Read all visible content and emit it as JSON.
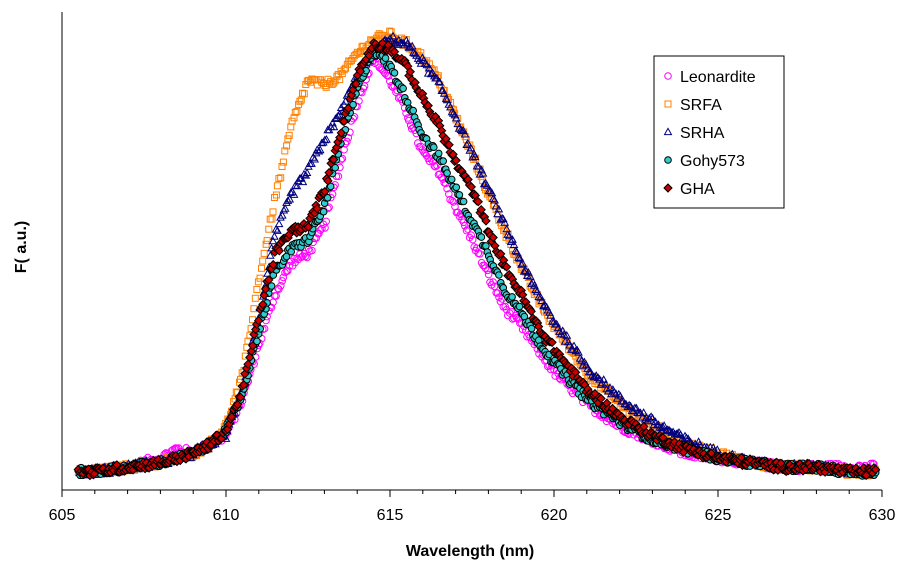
{
  "chart_data": {
    "type": "scatter",
    "title": "",
    "xlabel": "Wavelength (nm)",
    "ylabel": "F( a.u.)",
    "xlim": [
      605,
      630
    ],
    "ylim": [
      0,
      1.05
    ],
    "x_ticks": [
      "605",
      "610",
      "615",
      "620",
      "625",
      "630"
    ],
    "grid": false,
    "legend_position": "top-right",
    "x_range": [
      605.5,
      629.8
    ],
    "series": [
      {
        "name": "Leonardite",
        "marker": "circle-open",
        "color": "#ff00ff",
        "fill": "none",
        "points": [
          [
            605.5,
            0.04
          ],
          [
            606,
            0.04
          ],
          [
            607,
            0.05
          ],
          [
            608,
            0.07
          ],
          [
            608.5,
            0.09
          ],
          [
            609,
            0.08
          ],
          [
            609.5,
            0.1
          ],
          [
            610,
            0.12
          ],
          [
            610.5,
            0.2
          ],
          [
            611,
            0.32
          ],
          [
            611.5,
            0.43
          ],
          [
            612,
            0.5
          ],
          [
            612.5,
            0.52
          ],
          [
            613,
            0.58
          ],
          [
            613.5,
            0.72
          ],
          [
            614,
            0.85
          ],
          [
            614.5,
            0.95
          ],
          [
            615,
            0.9
          ],
          [
            615.5,
            0.83
          ],
          [
            616,
            0.74
          ],
          [
            616.5,
            0.7
          ],
          [
            617,
            0.62
          ],
          [
            617.5,
            0.55
          ],
          [
            618,
            0.47
          ],
          [
            618.5,
            0.4
          ],
          [
            619,
            0.36
          ],
          [
            619.5,
            0.31
          ],
          [
            620,
            0.26
          ],
          [
            621,
            0.19
          ],
          [
            622,
            0.14
          ],
          [
            623,
            0.11
          ],
          [
            624,
            0.08
          ],
          [
            625,
            0.07
          ],
          [
            626,
            0.06
          ],
          [
            627,
            0.05
          ],
          [
            628,
            0.05
          ],
          [
            629,
            0.05
          ],
          [
            629.8,
            0.05
          ]
        ]
      },
      {
        "name": "SRFA",
        "marker": "square-open",
        "color": "#ff8000",
        "fill": "none",
        "points": [
          [
            605.5,
            0.04
          ],
          [
            606,
            0.04
          ],
          [
            607,
            0.05
          ],
          [
            608,
            0.06
          ],
          [
            609,
            0.08
          ],
          [
            609.5,
            0.1
          ],
          [
            610,
            0.14
          ],
          [
            610.5,
            0.25
          ],
          [
            611,
            0.46
          ],
          [
            611.5,
            0.64
          ],
          [
            612,
            0.8
          ],
          [
            612.5,
            0.9
          ],
          [
            613,
            0.89
          ],
          [
            613.5,
            0.91
          ],
          [
            614,
            0.96
          ],
          [
            614.5,
            0.99
          ],
          [
            615,
            1.0
          ],
          [
            615.5,
            0.98
          ],
          [
            616,
            0.95
          ],
          [
            616.5,
            0.9
          ],
          [
            617,
            0.82
          ],
          [
            617.5,
            0.74
          ],
          [
            618,
            0.65
          ],
          [
            618.5,
            0.57
          ],
          [
            619,
            0.49
          ],
          [
            619.5,
            0.42
          ],
          [
            620,
            0.36
          ],
          [
            621,
            0.26
          ],
          [
            622,
            0.19
          ],
          [
            623,
            0.14
          ],
          [
            624,
            0.1
          ],
          [
            625,
            0.08
          ],
          [
            626,
            0.06
          ],
          [
            627,
            0.05
          ],
          [
            628,
            0.05
          ],
          [
            629,
            0.04
          ],
          [
            629.8,
            0.04
          ]
        ]
      },
      {
        "name": "SRHA",
        "marker": "triangle-open",
        "color": "#000080",
        "fill": "none",
        "points": [
          [
            605.5,
            0.04
          ],
          [
            606,
            0.04
          ],
          [
            607,
            0.05
          ],
          [
            608,
            0.06
          ],
          [
            609,
            0.08
          ],
          [
            609.5,
            0.1
          ],
          [
            610,
            0.12
          ],
          [
            610.5,
            0.22
          ],
          [
            611,
            0.38
          ],
          [
            611.5,
            0.56
          ],
          [
            612,
            0.65
          ],
          [
            612.5,
            0.7
          ],
          [
            613,
            0.77
          ],
          [
            613.5,
            0.83
          ],
          [
            614,
            0.91
          ],
          [
            614.5,
            0.96
          ],
          [
            615,
            0.99
          ],
          [
            615.5,
            0.98
          ],
          [
            616,
            0.94
          ],
          [
            616.5,
            0.89
          ],
          [
            617,
            0.82
          ],
          [
            617.5,
            0.74
          ],
          [
            618,
            0.66
          ],
          [
            618.5,
            0.58
          ],
          [
            619,
            0.5
          ],
          [
            619.5,
            0.43
          ],
          [
            620,
            0.37
          ],
          [
            621,
            0.27
          ],
          [
            622,
            0.2
          ],
          [
            623,
            0.15
          ],
          [
            624,
            0.11
          ],
          [
            625,
            0.08
          ],
          [
            626,
            0.06
          ],
          [
            627,
            0.05
          ],
          [
            628,
            0.05
          ],
          [
            629,
            0.04
          ],
          [
            629.8,
            0.04
          ]
        ]
      },
      {
        "name": "Gohy573",
        "marker": "circle-filled",
        "color": "#000000",
        "fill": "#33cccc",
        "points": [
          [
            605.5,
            0.04
          ],
          [
            606,
            0.04
          ],
          [
            607,
            0.05
          ],
          [
            608,
            0.06
          ],
          [
            608.5,
            0.07
          ],
          [
            609,
            0.08
          ],
          [
            609.5,
            0.1
          ],
          [
            610,
            0.13
          ],
          [
            610.5,
            0.21
          ],
          [
            611,
            0.35
          ],
          [
            611.5,
            0.48
          ],
          [
            612,
            0.53
          ],
          [
            612.5,
            0.55
          ],
          [
            613,
            0.62
          ],
          [
            613.5,
            0.76
          ],
          [
            614,
            0.88
          ],
          [
            614.5,
            0.97
          ],
          [
            615,
            0.93
          ],
          [
            615.5,
            0.86
          ],
          [
            616,
            0.78
          ],
          [
            616.5,
            0.73
          ],
          [
            617,
            0.66
          ],
          [
            617.5,
            0.59
          ],
          [
            618,
            0.52
          ],
          [
            618.5,
            0.44
          ],
          [
            619,
            0.39
          ],
          [
            619.5,
            0.33
          ],
          [
            620,
            0.28
          ],
          [
            621,
            0.2
          ],
          [
            622,
            0.15
          ],
          [
            623,
            0.11
          ],
          [
            624,
            0.09
          ],
          [
            625,
            0.07
          ],
          [
            626,
            0.06
          ],
          [
            627,
            0.05
          ],
          [
            628,
            0.05
          ],
          [
            629,
            0.04
          ],
          [
            629.8,
            0.04
          ]
        ]
      },
      {
        "name": "GHA",
        "marker": "diamond-filled",
        "color": "#000000",
        "fill": "#cc0000",
        "points": [
          [
            605.5,
            0.04
          ],
          [
            606,
            0.04
          ],
          [
            607,
            0.05
          ],
          [
            608,
            0.06
          ],
          [
            609,
            0.08
          ],
          [
            609.5,
            0.1
          ],
          [
            610,
            0.13
          ],
          [
            610.5,
            0.22
          ],
          [
            611,
            0.38
          ],
          [
            611.5,
            0.52
          ],
          [
            612,
            0.57
          ],
          [
            612.5,
            0.58
          ],
          [
            613,
            0.66
          ],
          [
            613.5,
            0.79
          ],
          [
            614,
            0.91
          ],
          [
            614.5,
            0.98
          ],
          [
            615,
            0.97
          ],
          [
            615.5,
            0.93
          ],
          [
            616,
            0.86
          ],
          [
            616.5,
            0.8
          ],
          [
            617,
            0.72
          ],
          [
            617.5,
            0.66
          ],
          [
            618,
            0.57
          ],
          [
            618.5,
            0.49
          ],
          [
            619,
            0.43
          ],
          [
            619.5,
            0.36
          ],
          [
            620,
            0.31
          ],
          [
            621,
            0.22
          ],
          [
            622,
            0.16
          ],
          [
            623,
            0.12
          ],
          [
            624,
            0.09
          ],
          [
            625,
            0.07
          ],
          [
            626,
            0.06
          ],
          [
            627,
            0.05
          ],
          [
            628,
            0.05
          ],
          [
            629,
            0.04
          ],
          [
            629.8,
            0.04
          ]
        ]
      }
    ]
  }
}
